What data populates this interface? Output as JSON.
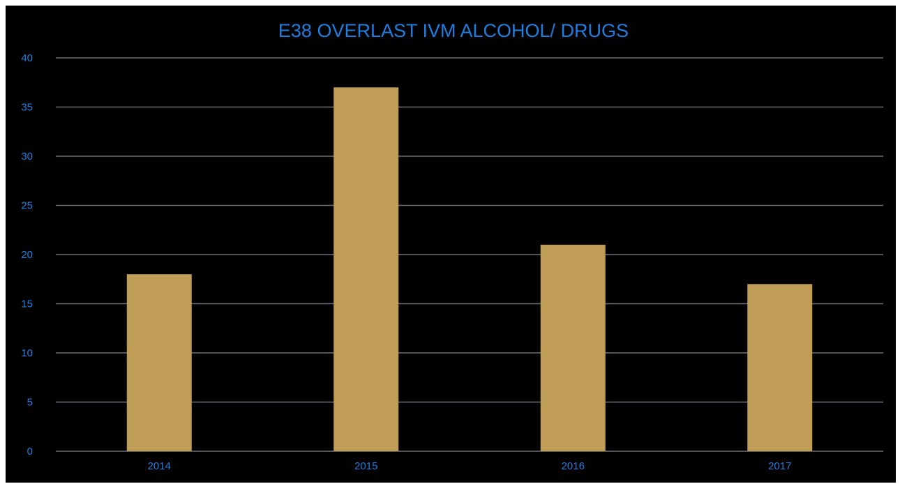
{
  "chart_data": {
    "type": "bar",
    "title": "E38 OVERLAST IVM ALCOHOL/ DRUGS",
    "categories": [
      "2014",
      "2015",
      "2016",
      "2017"
    ],
    "values": [
      18,
      37,
      21,
      17
    ],
    "ylim": [
      0,
      40
    ],
    "yticks": [
      "0",
      "5",
      "10",
      "15",
      "20",
      "25",
      "30",
      "35",
      "40"
    ],
    "xlabel": "",
    "ylabel": "",
    "grid": true,
    "legend": "none",
    "colors": {
      "background": "#000000",
      "bar": "#bf9d57",
      "text": "#1f7fe0",
      "grid": "#6b7178"
    }
  }
}
